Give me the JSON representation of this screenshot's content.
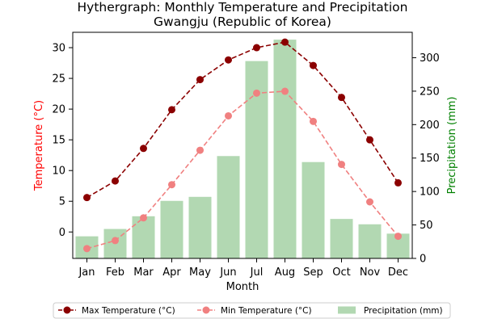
{
  "chart_data": {
    "type": "bar",
    "title": "Hythergraph: Monthly Temperature and Precipitation",
    "subtitle": "Gwangju (Republic of Korea)",
    "xlabel": "Month",
    "ylabel_left": "Temperature (°C)",
    "ylabel_right": "Precipitation (mm)",
    "categories": [
      "Jan",
      "Feb",
      "Mar",
      "Apr",
      "May",
      "Jun",
      "Jul",
      "Aug",
      "Sep",
      "Oct",
      "Nov",
      "Dec"
    ],
    "series": [
      {
        "name": "Max Temperature (°C)",
        "type": "line",
        "axis": "left",
        "color": "#8b0000",
        "values": [
          5.6,
          8.3,
          13.6,
          19.9,
          24.8,
          28.0,
          30.0,
          30.9,
          27.1,
          21.9,
          15.0,
          8.0
        ]
      },
      {
        "name": "Min Temperature (°C)",
        "type": "line",
        "axis": "left",
        "color": "#f08080",
        "values": [
          -2.7,
          -1.4,
          2.3,
          7.7,
          13.3,
          18.9,
          22.6,
          22.9,
          18.0,
          11.0,
          4.9,
          -0.7
        ]
      },
      {
        "name": "Precipitation (mm)",
        "type": "bar",
        "axis": "right",
        "color": "#b2d8b2",
        "values": [
          33,
          44,
          63,
          86,
          92,
          153,
          295,
          327,
          144,
          59,
          51,
          37
        ]
      }
    ],
    "ylim_left": [
      -4.3,
      32.5
    ],
    "yticks_left": [
      0,
      5,
      10,
      15,
      20,
      25,
      30
    ],
    "ylim_right": [
      0,
      338
    ],
    "yticks_right": [
      0,
      50,
      100,
      150,
      200,
      250,
      300
    ],
    "left_axis_color": "#ff0000",
    "right_axis_color": "#008000",
    "grid": false,
    "legend_placement": "bottom-center"
  }
}
